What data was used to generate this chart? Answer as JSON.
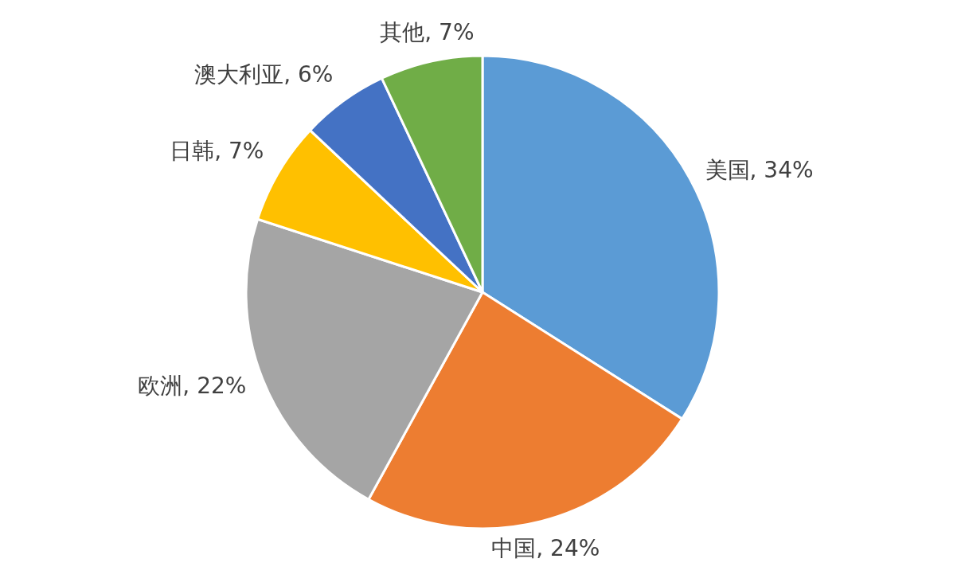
{
  "chart_data": {
    "type": "pie",
    "categories": [
      "美国",
      "中国",
      "欧洲",
      "日韩",
      "澳大利亚",
      "其他"
    ],
    "values": [
      34,
      24,
      22,
      7,
      6,
      7
    ],
    "colors": [
      "#5b9bd5",
      "#ed7d31",
      "#a5a5a5",
      "#ffc000",
      "#4472c4",
      "#70ad47"
    ],
    "value_labels": [
      ", 34%",
      ", 24%",
      ", 22%",
      ", 7%",
      ", 6%",
      ", 7%"
    ]
  }
}
